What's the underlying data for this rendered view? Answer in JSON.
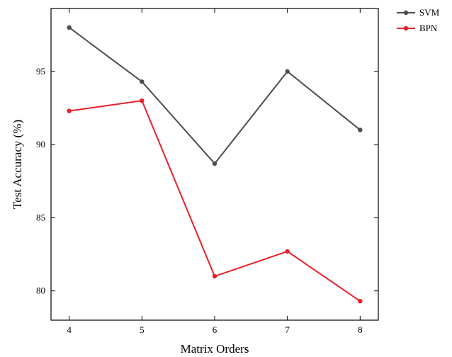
{
  "chart_data": {
    "type": "line",
    "title": "",
    "xlabel": "Matrix Orders",
    "ylabel": "Test Accuracy (%)",
    "x": [
      4,
      5,
      6,
      7,
      8
    ],
    "x_tick_labels": [
      "4",
      "5",
      "6",
      "7",
      "8"
    ],
    "y_tick_labels": [
      "80",
      "85",
      "90",
      "95"
    ],
    "xlim": [
      3.75,
      8.25
    ],
    "ylim": [
      78.0,
      99.3
    ],
    "y_ticks": [
      80,
      85,
      90,
      95
    ],
    "grid": false,
    "legend_position": "top-right outside",
    "series": [
      {
        "name": "SVM",
        "color": "#4d4d4d",
        "values": [
          98.0,
          94.3,
          88.7,
          95.0,
          91.0
        ]
      },
      {
        "name": "BPN",
        "color": "#e8202a",
        "values": [
          92.3,
          93.0,
          81.0,
          82.7,
          79.3
        ]
      }
    ]
  }
}
